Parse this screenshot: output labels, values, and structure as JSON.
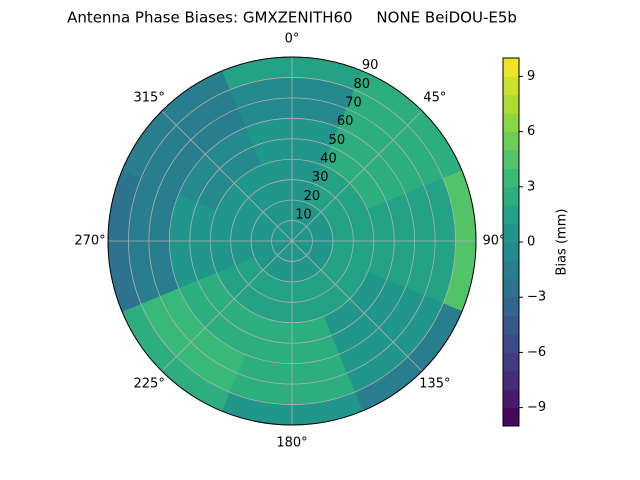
{
  "chart_data": {
    "type": "polar-contour",
    "title": "Antenna Phase Biases: GMXZENITH60     NONE BeiDOU-E5b",
    "colorbar_label": "Bias (mm)",
    "colormap": "viridis",
    "azimuth_bins": [
      -22.5,
      22.5,
      67.5,
      112.5,
      157.5,
      202.5,
      247.5,
      292.5,
      337.5
    ],
    "zenith_bins": [
      0,
      20,
      40,
      60,
      80,
      90
    ],
    "values": [
      [
        0,
        0.5,
        0.5,
        0.5,
        0.5,
        0.5,
        0,
        0
      ],
      [
        0,
        1,
        1,
        1,
        1,
        1,
        0.5,
        0
      ],
      [
        0,
        2,
        1,
        0.5,
        2,
        2,
        0,
        -0.5
      ],
      [
        -1,
        2,
        1,
        0,
        2,
        3,
        -2,
        -2
      ],
      [
        1,
        2,
        4,
        -2,
        0,
        2,
        -3,
        -2
      ]
    ],
    "rlim": [
      0,
      90
    ],
    "rticks": [
      10,
      20,
      30,
      40,
      50,
      60,
      70,
      80,
      90
    ],
    "thetaticks": [
      {
        "value": 0,
        "label": "0°"
      },
      {
        "value": 45,
        "label": "45°"
      },
      {
        "value": 90,
        "label": "90°"
      },
      {
        "value": 135,
        "label": "135°"
      },
      {
        "value": 180,
        "label": "180°"
      },
      {
        "value": 225,
        "label": "225°"
      },
      {
        "value": 270,
        "label": "270°"
      },
      {
        "value": 315,
        "label": "315°"
      }
    ],
    "clim": [
      -10,
      10
    ],
    "cticks": [
      {
        "value": -9,
        "label": "−9"
      },
      {
        "value": -6,
        "label": "−6"
      },
      {
        "value": -3,
        "label": "−3"
      },
      0,
      3,
      6,
      9
    ],
    "grid": true
  }
}
